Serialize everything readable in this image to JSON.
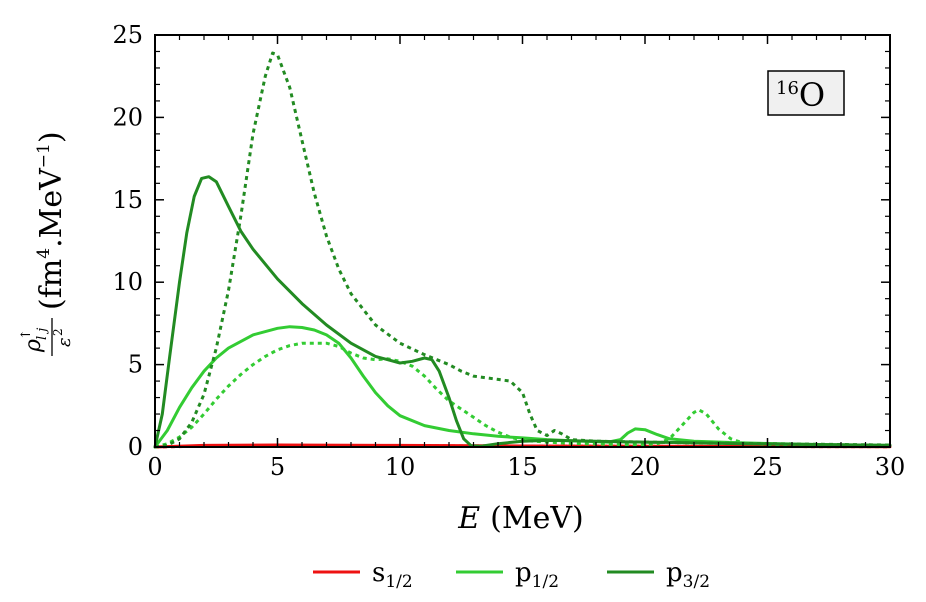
{
  "chart_data": {
    "type": "line",
    "xlabel": {
      "main": "E",
      "unit": "(MeV)"
    },
    "ylabel": {
      "unit_prefix": "(fm",
      "unit_power": "4",
      "unit_mid": ".MeV",
      "unit_exp": "−1",
      "unit_suffix": ")"
    },
    "xlim": [
      0,
      30
    ],
    "ylim": [
      0,
      25
    ],
    "x_ticks": [
      0,
      5,
      10,
      15,
      20,
      25,
      30
    ],
    "y_ticks": [
      0,
      5,
      10,
      15,
      20,
      25
    ],
    "x_tick_labels": [
      "0",
      "5",
      "10",
      "15",
      "20",
      "25",
      "30"
    ],
    "y_tick_labels": [
      "0",
      "5",
      "10",
      "15",
      "20",
      "25"
    ],
    "annotation": {
      "mass": "16",
      "element": "O"
    },
    "legend": {
      "placement": "bottom",
      "items": [
        {
          "base": "s",
          "sub": "1/2",
          "color": "#ee1111"
        },
        {
          "base": "p",
          "sub": "1/2",
          "color": "#33cc33"
        },
        {
          "base": "p",
          "sub": "3/2",
          "color": "#228b22"
        }
      ]
    },
    "series": [
      {
        "legend_ref": 0,
        "style": "solid",
        "color": "#ee1111",
        "points": [
          [
            0,
            0
          ],
          [
            2,
            0.1
          ],
          [
            5,
            0.12
          ],
          [
            10,
            0.1
          ],
          [
            15,
            0.06
          ],
          [
            20,
            0.04
          ],
          [
            25,
            0.03
          ],
          [
            30,
            0.02
          ]
        ]
      },
      {
        "legend_ref": 0,
        "style": "dotted",
        "color": "#ee1111",
        "points": [
          [
            0,
            0
          ],
          [
            2,
            0.05
          ],
          [
            10,
            0.08
          ],
          [
            20,
            0.04
          ],
          [
            30,
            0.02
          ]
        ]
      },
      {
        "legend_ref": 1,
        "style": "solid",
        "color": "#33cc33",
        "points": [
          [
            0,
            0
          ],
          [
            0.5,
            1.0
          ],
          [
            1,
            2.4
          ],
          [
            1.5,
            3.6
          ],
          [
            2,
            4.6
          ],
          [
            2.5,
            5.4
          ],
          [
            3,
            6.0
          ],
          [
            4,
            6.8
          ],
          [
            5,
            7.2
          ],
          [
            5.5,
            7.3
          ],
          [
            6,
            7.25
          ],
          [
            6.5,
            7.1
          ],
          [
            7,
            6.8
          ],
          [
            7.5,
            6.3
          ],
          [
            8,
            5.4
          ],
          [
            8.5,
            4.3
          ],
          [
            9,
            3.3
          ],
          [
            9.5,
            2.5
          ],
          [
            10,
            1.9
          ],
          [
            11,
            1.3
          ],
          [
            12,
            1.0
          ],
          [
            13,
            0.8
          ],
          [
            14,
            0.65
          ],
          [
            15,
            0.55
          ],
          [
            16,
            0.45
          ],
          [
            17,
            0.38
          ],
          [
            18,
            0.33
          ],
          [
            18.5,
            0.3
          ],
          [
            19,
            0.45
          ],
          [
            19.3,
            0.85
          ],
          [
            19.6,
            1.1
          ],
          [
            20,
            1.05
          ],
          [
            20.5,
            0.75
          ],
          [
            21,
            0.5
          ],
          [
            22,
            0.35
          ],
          [
            24,
            0.25
          ],
          [
            27,
            0.15
          ],
          [
            30,
            0.1
          ]
        ]
      },
      {
        "legend_ref": 1,
        "style": "dotted",
        "color": "#33cc33",
        "points": [
          [
            0,
            0
          ],
          [
            0.5,
            0.2
          ],
          [
            1,
            0.6
          ],
          [
            1.5,
            1.2
          ],
          [
            2,
            2.0
          ],
          [
            2.5,
            2.9
          ],
          [
            3,
            3.7
          ],
          [
            3.5,
            4.4
          ],
          [
            4,
            5.0
          ],
          [
            4.5,
            5.5
          ],
          [
            5,
            5.9
          ],
          [
            5.5,
            6.15
          ],
          [
            6,
            6.3
          ],
          [
            7,
            6.3
          ],
          [
            7.5,
            6.1
          ],
          [
            8,
            5.7
          ],
          [
            8.5,
            5.4
          ],
          [
            9,
            5.3
          ],
          [
            9.5,
            5.35
          ],
          [
            10,
            5.2
          ],
          [
            10.5,
            4.9
          ],
          [
            11,
            4.3
          ],
          [
            11.5,
            3.5
          ],
          [
            12,
            2.8
          ],
          [
            12.5,
            2.3
          ],
          [
            13,
            1.8
          ],
          [
            13.5,
            1.3
          ],
          [
            14,
            0.9
          ],
          [
            14.5,
            0.6
          ],
          [
            15,
            0.4
          ],
          [
            16,
            0.3
          ],
          [
            17,
            0.22
          ],
          [
            18,
            0.18
          ],
          [
            19,
            0.15
          ],
          [
            20,
            0.15
          ],
          [
            20.5,
            0.2
          ],
          [
            21,
            0.5
          ],
          [
            21.5,
            1.3
          ],
          [
            22,
            2.1
          ],
          [
            22.2,
            2.25
          ],
          [
            22.5,
            2.0
          ],
          [
            23,
            1.1
          ],
          [
            23.5,
            0.5
          ],
          [
            24,
            0.25
          ],
          [
            25,
            0.15
          ],
          [
            27,
            0.1
          ],
          [
            30,
            0.08
          ]
        ]
      },
      {
        "legend_ref": 2,
        "style": "solid",
        "color": "#228b22",
        "points": [
          [
            0,
            0
          ],
          [
            0.3,
            2.0
          ],
          [
            0.6,
            5.5
          ],
          [
            1,
            10.0
          ],
          [
            1.3,
            13.0
          ],
          [
            1.6,
            15.2
          ],
          [
            1.9,
            16.3
          ],
          [
            2.2,
            16.4
          ],
          [
            2.5,
            16.1
          ],
          [
            3,
            14.6
          ],
          [
            3.5,
            13.1
          ],
          [
            4,
            12.0
          ],
          [
            5,
            10.2
          ],
          [
            6,
            8.7
          ],
          [
            7,
            7.4
          ],
          [
            8,
            6.3
          ],
          [
            9,
            5.5
          ],
          [
            10,
            5.1
          ],
          [
            10.5,
            5.2
          ],
          [
            11,
            5.4
          ],
          [
            11.3,
            5.3
          ],
          [
            11.6,
            4.6
          ],
          [
            12,
            3.0
          ],
          [
            12.3,
            1.6
          ],
          [
            12.6,
            0.5
          ],
          [
            12.9,
            0.08
          ],
          [
            13.3,
            0.05
          ],
          [
            14,
            0.2
          ],
          [
            15,
            0.35
          ],
          [
            16,
            0.4
          ],
          [
            17,
            0.38
          ],
          [
            18,
            0.35
          ],
          [
            19,
            0.32
          ],
          [
            20,
            0.3
          ],
          [
            21,
            0.28
          ],
          [
            22,
            0.25
          ],
          [
            24,
            0.2
          ],
          [
            27,
            0.15
          ],
          [
            30,
            0.1
          ]
        ]
      },
      {
        "legend_ref": 2,
        "style": "dotted",
        "color": "#228b22",
        "points": [
          [
            0,
            0
          ],
          [
            0.5,
            0.1
          ],
          [
            1,
            0.5
          ],
          [
            1.5,
            1.5
          ],
          [
            2,
            3.2
          ],
          [
            2.5,
            6.0
          ],
          [
            3,
            9.5
          ],
          [
            3.5,
            14.0
          ],
          [
            4,
            19.0
          ],
          [
            4.5,
            22.5
          ],
          [
            4.8,
            23.9
          ],
          [
            5,
            23.8
          ],
          [
            5.5,
            21.8
          ],
          [
            6,
            18.6
          ],
          [
            6.5,
            15.4
          ],
          [
            7,
            12.8
          ],
          [
            7.5,
            10.8
          ],
          [
            8,
            9.3
          ],
          [
            9,
            7.4
          ],
          [
            10,
            6.3
          ],
          [
            11,
            5.6
          ],
          [
            12,
            5.0
          ],
          [
            12.5,
            4.6
          ],
          [
            13,
            4.3
          ],
          [
            14,
            4.1
          ],
          [
            14.5,
            4.0
          ],
          [
            15,
            3.3
          ],
          [
            15.3,
            2.0
          ],
          [
            15.6,
            1.0
          ],
          [
            16,
            0.7
          ],
          [
            16.3,
            1.0
          ],
          [
            16.6,
            0.8
          ],
          [
            17,
            0.45
          ],
          [
            18,
            0.35
          ],
          [
            20,
            0.3
          ],
          [
            22,
            0.25
          ],
          [
            25,
            0.2
          ],
          [
            28,
            0.15
          ],
          [
            30,
            0.12
          ]
        ]
      }
    ]
  }
}
